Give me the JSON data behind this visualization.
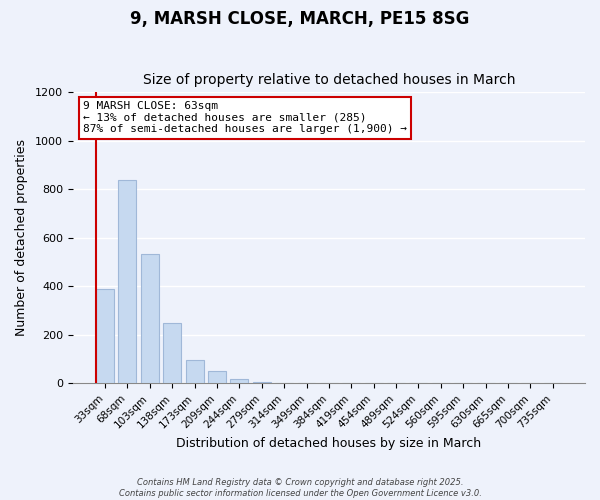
{
  "title": "9, MARSH CLOSE, MARCH, PE15 8SG",
  "subtitle": "Size of property relative to detached houses in March",
  "xlabel": "Distribution of detached houses by size in March",
  "ylabel": "Number of detached properties",
  "bar_values": [
    390,
    840,
    535,
    248,
    97,
    52,
    18,
    8,
    2,
    0,
    0,
    0,
    0,
    0,
    0,
    0,
    0,
    0,
    0,
    0,
    0
  ],
  "categories": [
    "33sqm",
    "68sqm",
    "103sqm",
    "138sqm",
    "173sqm",
    "209sqm",
    "244sqm",
    "279sqm",
    "314sqm",
    "349sqm",
    "384sqm",
    "419sqm",
    "454sqm",
    "489sqm",
    "524sqm",
    "560sqm",
    "595sqm",
    "630sqm",
    "665sqm",
    "700sqm",
    "735sqm"
  ],
  "bar_color": "#c6d9f0",
  "bar_edge_color": "#a0b8d8",
  "marker_line_color": "#cc0000",
  "annotation_text": "9 MARSH CLOSE: 63sqm\n← 13% of detached houses are smaller (285)\n87% of semi-detached houses are larger (1,900) →",
  "annotation_box_color": "#ffffff",
  "annotation_box_edge": "#cc0000",
  "ylim": [
    0,
    1200
  ],
  "yticks": [
    0,
    200,
    400,
    600,
    800,
    1000,
    1200
  ],
  "footer_line1": "Contains HM Land Registry data © Crown copyright and database right 2025.",
  "footer_line2": "Contains public sector information licensed under the Open Government Licence v3.0.",
  "bg_color": "#eef2fb",
  "grid_color": "#ffffff",
  "title_fontsize": 12,
  "subtitle_fontsize": 10,
  "figsize": [
    6.0,
    5.0
  ],
  "dpi": 100
}
